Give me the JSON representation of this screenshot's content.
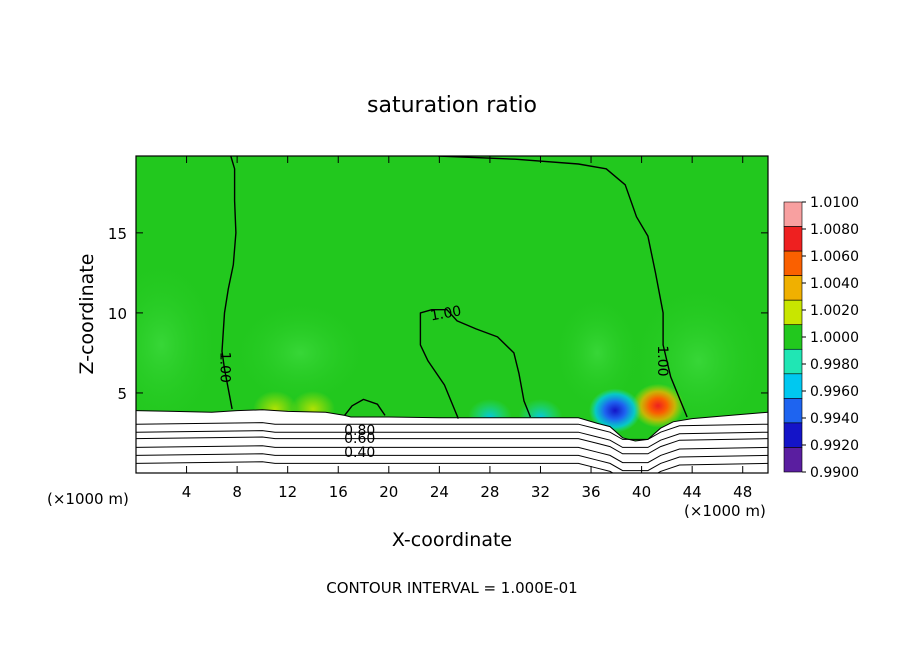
{
  "chart_data": {
    "type": "heatmap",
    "title": "saturation ratio",
    "xlabel": "X-coordinate",
    "ylabel": "Z-coordinate",
    "x_unit_left": "(×1000 m)",
    "x_unit_right": "(×1000 m)",
    "xlim": [
      0,
      50
    ],
    "ylim": [
      0,
      19.8
    ],
    "x_ticks": [
      4,
      8,
      12,
      16,
      20,
      24,
      28,
      32,
      36,
      40,
      44,
      48
    ],
    "y_ticks": [
      5,
      10,
      15
    ],
    "footer": "CONTOUR INTERVAL = 1.000E-01",
    "colorbar": {
      "labels": [
        "1.0100",
        "1.0080",
        "1.0060",
        "1.0040",
        "1.0020",
        "1.0000",
        "0.9980",
        "0.9960",
        "0.9940",
        "0.9920",
        "0.9900"
      ],
      "colors": [
        "#f8a0a0",
        "#ee2020",
        "#fa6000",
        "#f0b000",
        "#c8e600",
        "#22c81e",
        "#20e6b4",
        "#00c8f0",
        "#1e64f0",
        "#1414c8",
        "#5a1ea0"
      ]
    },
    "contour_labels": [
      {
        "text": "1.00",
        "x": 7.1,
        "z": 6.6,
        "rotate": 90
      },
      {
        "text": "1.00",
        "x": 24.5,
        "z": 10.0,
        "rotate": -10
      },
      {
        "text": "1.00",
        "x": 41.7,
        "z": 7.0,
        "rotate": 90
      },
      {
        "text": "0.80",
        "x": 17.7,
        "z": 2.7,
        "rotate": 0
      },
      {
        "text": "0.60",
        "x": 17.7,
        "z": 2.2,
        "rotate": 0
      },
      {
        "text": "0.40",
        "x": 17.7,
        "z": 1.3,
        "rotate": 0
      }
    ],
    "contours": [
      {
        "level": 1.0,
        "points": [
          [
            7.5,
            19.8
          ],
          [
            7.8,
            19
          ],
          [
            7.8,
            17
          ],
          [
            7.9,
            15
          ],
          [
            7.7,
            13
          ],
          [
            7.3,
            11.5
          ],
          [
            7.0,
            10
          ],
          [
            6.8,
            7.6
          ],
          [
            7.0,
            6.5
          ],
          [
            7.6,
            4.0
          ]
        ]
      },
      {
        "level": 1.0,
        "points": [
          [
            23.9,
            19.8
          ],
          [
            30,
            19.6
          ],
          [
            35,
            19.3
          ],
          [
            37.2,
            19.0
          ],
          [
            38.7,
            18
          ],
          [
            39.6,
            16
          ],
          [
            40.5,
            14.8
          ],
          [
            41.1,
            12.5
          ],
          [
            41.7,
            10
          ],
          [
            41.7,
            8.0
          ],
          [
            42.3,
            6.0
          ],
          [
            43.6,
            3.5
          ]
        ]
      },
      {
        "level": 1.0,
        "points": [
          [
            25.5,
            3.4
          ],
          [
            24.4,
            5.5
          ],
          [
            23.1,
            7.0
          ],
          [
            22.5,
            8.0
          ],
          [
            22.5,
            10
          ],
          [
            23.4,
            10.2
          ],
          [
            24.6,
            10.2
          ],
          [
            25.4,
            9.5
          ],
          [
            26.9,
            9.0
          ],
          [
            28.6,
            8.5
          ],
          [
            29.9,
            7.5
          ],
          [
            30.3,
            6.2
          ],
          [
            30.7,
            4.5
          ],
          [
            31.2,
            3.5
          ]
        ]
      },
      {
        "level": 1.0,
        "points": [
          [
            16.5,
            3.6
          ],
          [
            17.1,
            4.2
          ],
          [
            18.0,
            4.6
          ],
          [
            19.1,
            4.3
          ],
          [
            19.7,
            3.6
          ]
        ]
      }
    ],
    "terrain_lines_z": [
      3.05,
      2.55,
      2.15,
      1.6,
      1.1,
      0.6
    ],
    "anomalies": [
      {
        "sign": "moist",
        "x": 41.3,
        "z": 4.2,
        "value": 1.008
      },
      {
        "sign": "dry",
        "x": 37.9,
        "z": 3.9,
        "value": 0.993
      },
      {
        "sign": "dry",
        "x": 28.0,
        "z": 3.5,
        "value": 0.996
      },
      {
        "sign": "dry",
        "x": 32.0,
        "z": 3.5,
        "value": 0.997
      },
      {
        "sign": "moist",
        "x": 11.0,
        "z": 4.0,
        "value": 1.004
      },
      {
        "sign": "moist",
        "x": 14.0,
        "z": 4.0,
        "value": 1.003
      }
    ]
  }
}
